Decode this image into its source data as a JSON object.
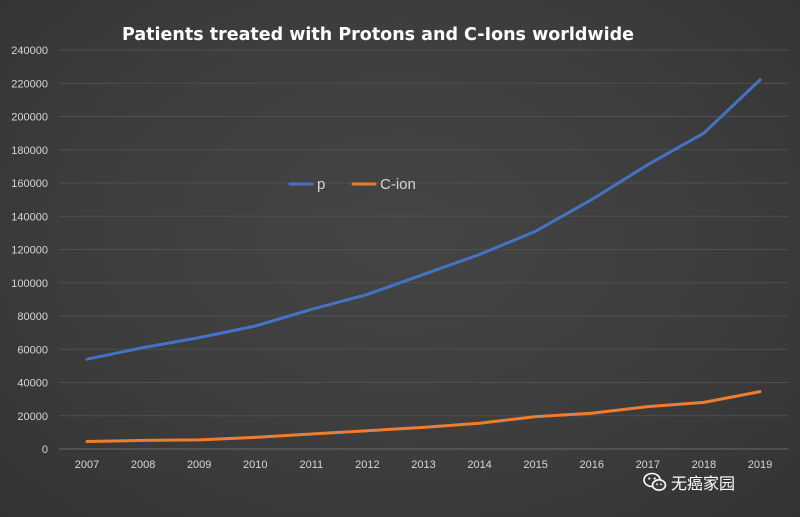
{
  "chart_data": {
    "type": "line",
    "title": "Patients treated with Protons and C-Ions worldwide",
    "xlabel": "",
    "ylabel": "",
    "categories": [
      "2007",
      "2008",
      "2009",
      "2010",
      "2011",
      "2012",
      "2013",
      "2014",
      "2015",
      "2016",
      "2017",
      "2018",
      "2019"
    ],
    "yticks": [
      "0",
      "20000",
      "40000",
      "60000",
      "80000",
      "100000",
      "120000",
      "140000",
      "160000",
      "180000",
      "200000",
      "220000",
      "240000"
    ],
    "ylim": [
      0,
      240000
    ],
    "grid": true,
    "legend_position": "center",
    "series": [
      {
        "name": "p",
        "color": "#4472c4",
        "values": [
          54000,
          61000,
          67000,
          74000,
          84000,
          93000,
          105000,
          117000,
          131000,
          150000,
          171000,
          190000,
          222000
        ]
      },
      {
        "name": "C-ion",
        "color": "#ed7d31",
        "values": [
          4500,
          5200,
          5500,
          7000,
          9000,
          11000,
          13000,
          15500,
          19500,
          21500,
          25500,
          28000,
          34500
        ]
      }
    ]
  },
  "watermark": {
    "icon": "wechat-icon",
    "text": "无癌家园"
  }
}
